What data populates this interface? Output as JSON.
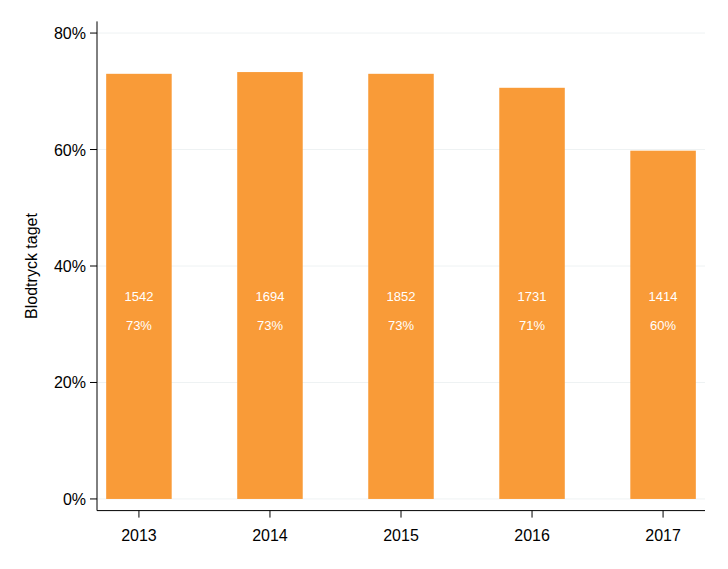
{
  "chart_data": {
    "type": "bar",
    "y_label": "Blodtryck taget",
    "categories": [
      "2013",
      "2014",
      "2015",
      "2016",
      "2017"
    ],
    "values": [
      73,
      73.3,
      73,
      70.6,
      59.8
    ],
    "value_labels": [
      "73%",
      "73%",
      "73%",
      "71%",
      "60%"
    ],
    "counts": [
      1542,
      1694,
      1852,
      1731,
      1414
    ],
    "color": "#f99b38",
    "ylim": [
      -2,
      82
    ],
    "yticks": [
      {
        "value": 0,
        "label": "0%"
      },
      {
        "value": 20,
        "label": "20%"
      },
      {
        "value": 40,
        "label": "40%"
      },
      {
        "value": 60,
        "label": "60%"
      },
      {
        "value": 80,
        "label": "80%"
      }
    ],
    "grid": true,
    "data_labels": true
  }
}
